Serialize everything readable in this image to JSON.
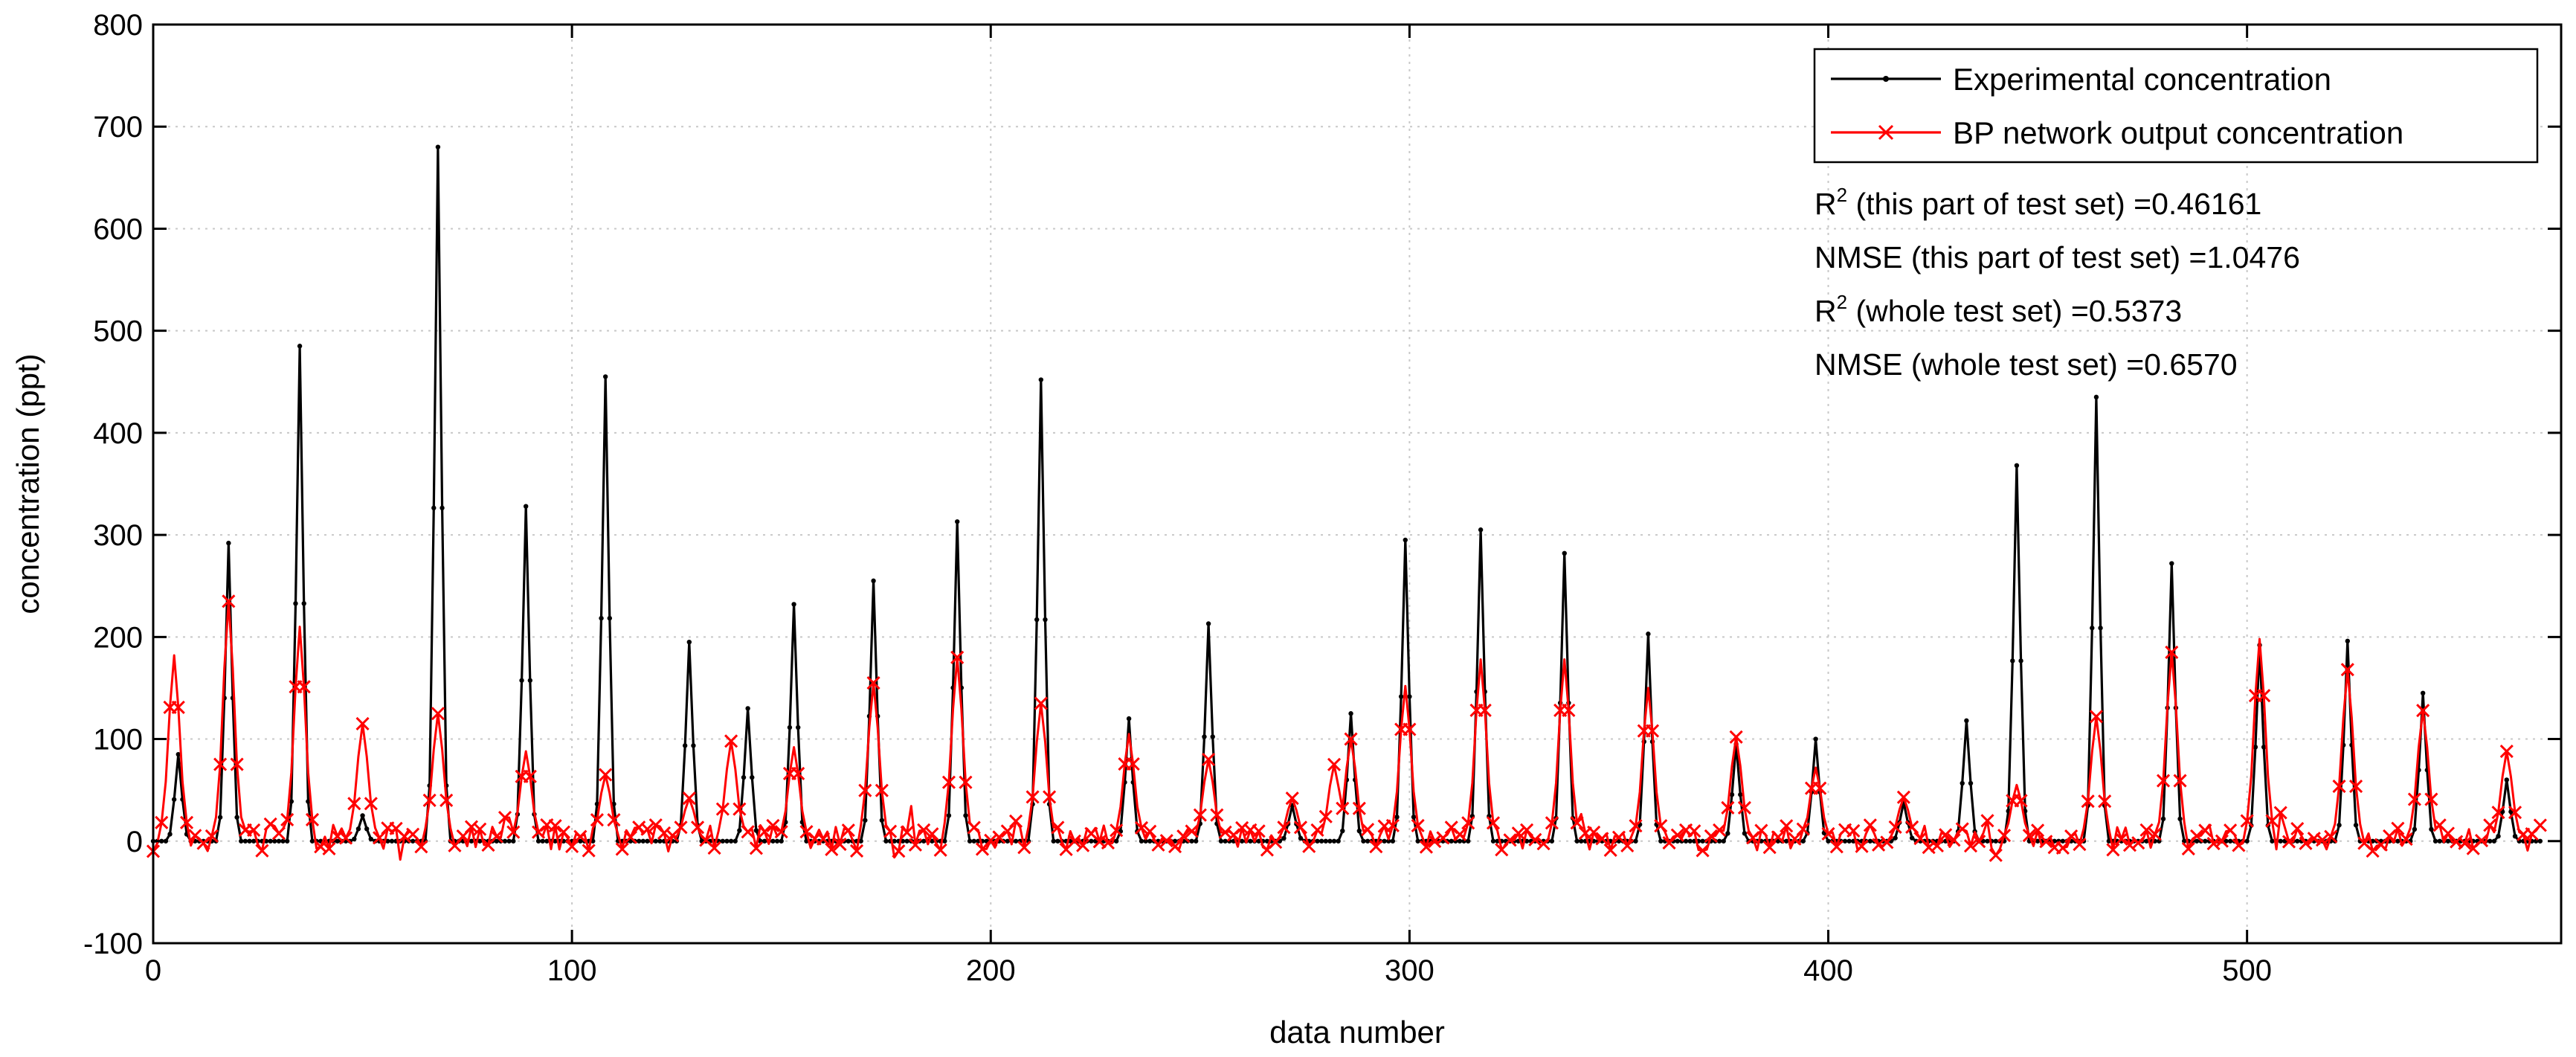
{
  "colors": {
    "experimental": "#000000",
    "bp_output": "#ff0000",
    "grid": "#c8c8c8",
    "axes": "#000000"
  },
  "chart_data": {
    "type": "line",
    "xlabel": "data number",
    "ylabel": "concentration (ppt)",
    "xlim": [
      0,
      575
    ],
    "ylim": [
      -100,
      800
    ],
    "xticks": [
      0,
      100,
      200,
      300,
      400,
      500
    ],
    "yticks": [
      -100,
      0,
      100,
      200,
      300,
      400,
      500,
      600,
      700,
      800
    ],
    "grid": true,
    "legend_position": "top-right",
    "series": [
      {
        "name": "Experimental concentration",
        "marker": "dot",
        "color": "#000000",
        "peaks": [
          {
            "x": 6,
            "y": 85
          },
          {
            "x": 18,
            "y": 292
          },
          {
            "x": 35,
            "y": 485
          },
          {
            "x": 50,
            "y": 25
          },
          {
            "x": 68,
            "y": 680
          },
          {
            "x": 89,
            "y": 328
          },
          {
            "x": 108,
            "y": 455
          },
          {
            "x": 128,
            "y": 195
          },
          {
            "x": 142,
            "y": 130
          },
          {
            "x": 153,
            "y": 232
          },
          {
            "x": 172,
            "y": 255
          },
          {
            "x": 192,
            "y": 313
          },
          {
            "x": 212,
            "y": 452
          },
          {
            "x": 233,
            "y": 120
          },
          {
            "x": 252,
            "y": 213
          },
          {
            "x": 272,
            "y": 35
          },
          {
            "x": 286,
            "y": 125
          },
          {
            "x": 299,
            "y": 295
          },
          {
            "x": 317,
            "y": 305
          },
          {
            "x": 337,
            "y": 282
          },
          {
            "x": 357,
            "y": 203
          },
          {
            "x": 378,
            "y": 95
          },
          {
            "x": 397,
            "y": 100
          },
          {
            "x": 418,
            "y": 38
          },
          {
            "x": 433,
            "y": 118
          },
          {
            "x": 445,
            "y": 368
          },
          {
            "x": 464,
            "y": 435
          },
          {
            "x": 482,
            "y": 272
          },
          {
            "x": 503,
            "y": 192
          },
          {
            "x": 524,
            "y": 196
          },
          {
            "x": 542,
            "y": 145
          },
          {
            "x": 562,
            "y": 60
          }
        ]
      },
      {
        "name": "BP network output concentration",
        "marker": "x",
        "color": "#ff0000",
        "peaks": [
          {
            "x": 5,
            "y": 182
          },
          {
            "x": 18,
            "y": 235
          },
          {
            "x": 35,
            "y": 210
          },
          {
            "x": 50,
            "y": 115
          },
          {
            "x": 68,
            "y": 125
          },
          {
            "x": 89,
            "y": 88
          },
          {
            "x": 108,
            "y": 65
          },
          {
            "x": 128,
            "y": 42
          },
          {
            "x": 138,
            "y": 98
          },
          {
            "x": 153,
            "y": 92
          },
          {
            "x": 172,
            "y": 155
          },
          {
            "x": 192,
            "y": 180
          },
          {
            "x": 212,
            "y": 135
          },
          {
            "x": 233,
            "y": 105
          },
          {
            "x": 252,
            "y": 80
          },
          {
            "x": 272,
            "y": 42
          },
          {
            "x": 282,
            "y": 75
          },
          {
            "x": 286,
            "y": 100
          },
          {
            "x": 299,
            "y": 152
          },
          {
            "x": 317,
            "y": 178
          },
          {
            "x": 337,
            "y": 178
          },
          {
            "x": 357,
            "y": 150
          },
          {
            "x": 378,
            "y": 102
          },
          {
            "x": 397,
            "y": 72
          },
          {
            "x": 418,
            "y": 43
          },
          {
            "x": 445,
            "y": 55
          },
          {
            "x": 464,
            "y": 122
          },
          {
            "x": 482,
            "y": 185
          },
          {
            "x": 503,
            "y": 198
          },
          {
            "x": 524,
            "y": 168
          },
          {
            "x": 542,
            "y": 128
          },
          {
            "x": 562,
            "y": 88
          }
        ]
      }
    ]
  },
  "annotations": {
    "r2_part": {
      "base": "R",
      "sup": "2",
      "text": " (this part of test set) =0.46161"
    },
    "nmse_part": {
      "text": "NMSE (this part of test set) =1.0476"
    },
    "r2_whole": {
      "base": "R",
      "sup": "2",
      "text": " (whole test set) =0.5373"
    },
    "nmse_whole": {
      "text": "NMSE (whole test set) =0.6570"
    }
  }
}
